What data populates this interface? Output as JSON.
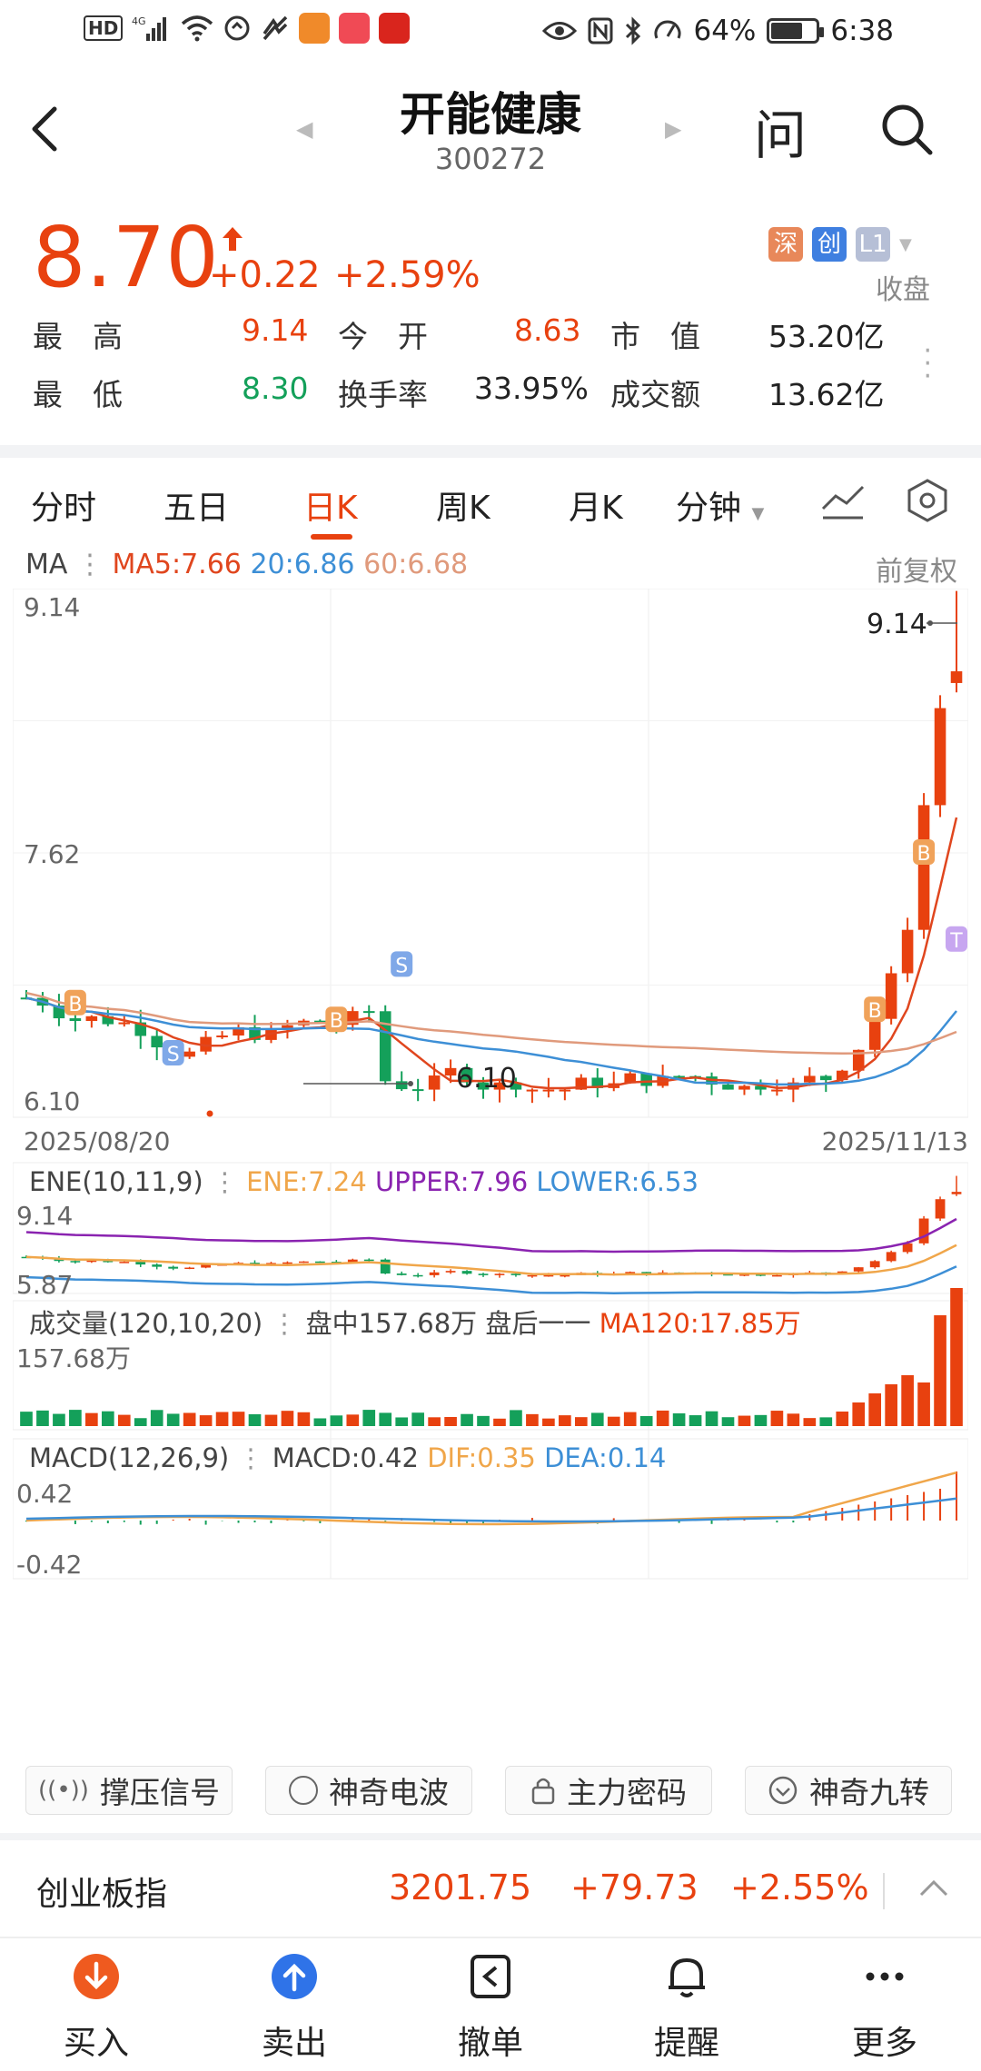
{
  "status": {
    "left_icons": [
      "hd-icon",
      "4g-signal-icon",
      "wifi-icon",
      "data-saver-icon",
      "nfc-pay-icon",
      "app-icon-orange",
      "app-icon-huawei",
      "app-icon-red"
    ],
    "battery_pct": "64%",
    "time": "6:38"
  },
  "header": {
    "title": "开能健康",
    "code": "300272",
    "ask_label": "问"
  },
  "quote": {
    "price": "8.70",
    "change": "+0.22",
    "change_pct": "+2.59%",
    "badges": [
      "深",
      "创",
      "L1"
    ],
    "status": "收盘",
    "rows": [
      [
        {
          "label": "最　高",
          "value": "9.14",
          "color": "#e8410f"
        },
        {
          "label": "今　开",
          "value": "8.63",
          "color": "#e8410f"
        },
        {
          "label": "市　值",
          "value": "53.20亿",
          "color": "#222"
        }
      ],
      [
        {
          "label": "最　低",
          "value": "8.30",
          "color": "#14a05a"
        },
        {
          "label": "换手率",
          "value": "33.95%",
          "color": "#222"
        },
        {
          "label": "成交额",
          "value": "13.62亿",
          "color": "#222"
        }
      ]
    ]
  },
  "tabs": [
    "分时",
    "五日",
    "日K",
    "周K",
    "月K",
    "分钟"
  ],
  "active_tab": "日K",
  "ma_legend": {
    "title": "MA",
    "ma5": "MA5:7.66",
    "ma20": "20:6.86",
    "ma60": "60:6.68",
    "adjust": "前复权"
  },
  "kline": {
    "y_top": "9.14",
    "y_mid": "7.62",
    "y_bot": "6.10",
    "date_start": "2025/08/20",
    "date_end": "2025/11/13",
    "high_label": "9.14",
    "low_label": "6.10",
    "markers": [
      "S",
      "B",
      "S",
      "B",
      "B",
      "B",
      "T"
    ]
  },
  "ene": {
    "title": "ENE(10,11,9)",
    "ene": "ENE:7.24",
    "upper": "UPPER:7.96",
    "lower": "LOWER:6.53",
    "y_top": "9.14",
    "y_bot": "5.87"
  },
  "volume": {
    "title": "成交量(120,10,20)",
    "intraday": "盘中157.68万",
    "after": "盘后一一",
    "ma120": "MA120:17.85万",
    "y_top": "157.68万"
  },
  "macd": {
    "title": "MACD(12,26,9)",
    "macd": "MACD:0.42",
    "dif": "DIF:0.35",
    "dea": "DEA:0.14",
    "y_top": "0.42",
    "y_bot": "-0.42"
  },
  "tools": [
    "撑压信号",
    "神奇电波",
    "主力密码",
    "神奇九转"
  ],
  "index": {
    "name": "创业板指",
    "value": "3201.75",
    "change": "+79.73",
    "change_pct": "+2.55%"
  },
  "nav": [
    "买入",
    "卖出",
    "撤单",
    "提醒",
    "更多"
  ],
  "colors": {
    "up": "#e8410f",
    "down": "#14a05a",
    "ma5": "#e0461e",
    "ma20": "#3d8fd6",
    "ma60": "#e09a7c",
    "upper": "#8a23b0",
    "lower": "#3d8fd6",
    "ene": "#f0a64a",
    "dif": "#f0a64a",
    "dea": "#3d8fd6"
  }
}
